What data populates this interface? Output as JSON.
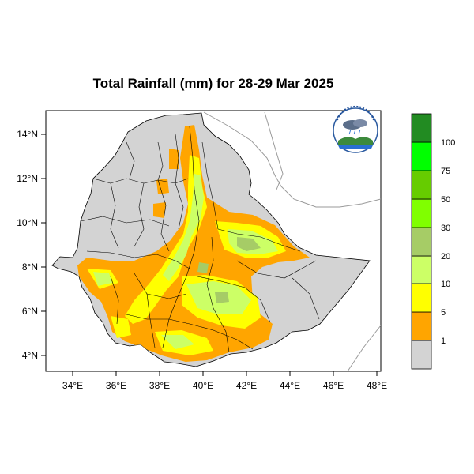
{
  "title": "Total Rainfall (mm) for 28-29 Mar 2025",
  "map": {
    "x_ticks": [
      "34°E",
      "36°E",
      "38°E",
      "40°E",
      "42°E",
      "44°E",
      "46°E",
      "48°E"
    ],
    "y_ticks": [
      "14°N",
      "12°N",
      "10°N",
      "8°N",
      "6°N",
      "4°N"
    ],
    "lon_range": [
      33,
      48
    ],
    "lat_range": [
      3.2,
      15
    ],
    "country_fill": "#d3d3d3",
    "border_color": "#000000"
  },
  "legend": {
    "labels": [
      "1",
      "5",
      "10",
      "20",
      "30",
      "50",
      "75",
      "100"
    ],
    "colors": [
      "#d3d3d3",
      "#ffa500",
      "#ffff00",
      "#ccff66",
      "#a6cc66",
      "#80ff00",
      "#66cc00",
      "#00ff00",
      "#228b22"
    ]
  },
  "logo": {
    "icon": "meteorology-agency-logo"
  }
}
